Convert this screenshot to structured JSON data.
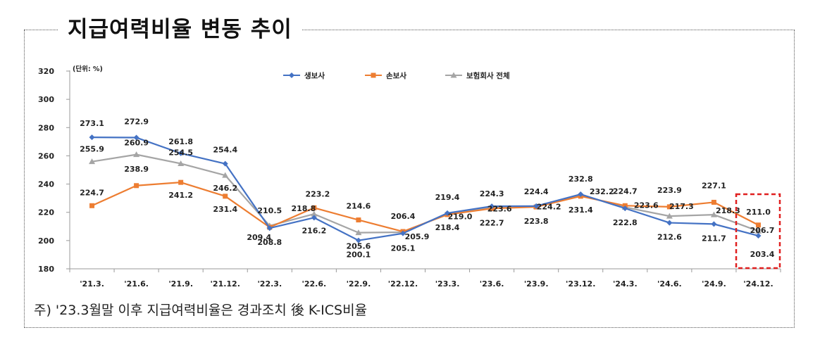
{
  "title": "지급여력비율 변동 추이",
  "note": "주) '23.3월말 이후 지급여력비율은 경과조치 後 K-ICS비율",
  "colors": {
    "life": "#4472C4",
    "nonlife": "#ED7D31",
    "total": "#A5A5A5",
    "highlight": "#E02020"
  },
  "chart_data": {
    "type": "line",
    "unit_label": "(단위: %)",
    "categories": [
      "'21.3.",
      "'21.6.",
      "'21.9.",
      "'21.12.",
      "'22.3.",
      "'22.6.",
      "'22.9.",
      "'22.12.",
      "'23.3.",
      "'23.6.",
      "'23.9.",
      "'23.12.",
      "'24.3.",
      "'24.6.",
      "'24.9.",
      "'24.12."
    ],
    "ylim": [
      180,
      320
    ],
    "yticks": [
      180,
      200,
      220,
      240,
      260,
      280,
      300,
      320
    ],
    "legend_position": "top-center",
    "grid": false,
    "series": [
      {
        "name": "생보사",
        "color": "#4472C4",
        "marker": "diamond",
        "values": [
          273.1,
          272.9,
          261.8,
          254.4,
          208.8,
          216.2,
          200.1,
          205.1,
          219.4,
          224.3,
          224.4,
          232.8,
          222.8,
          212.6,
          211.7,
          203.4
        ]
      },
      {
        "name": "손보사",
        "color": "#ED7D31",
        "marker": "square",
        "values": [
          224.7,
          238.9,
          241.2,
          231.4,
          209.4,
          223.2,
          214.6,
          206.4,
          218.4,
          222.7,
          223.8,
          231.4,
          224.7,
          223.9,
          227.1,
          211.0
        ]
      },
      {
        "name": "보험회사 전체",
        "color": "#A5A5A5",
        "marker": "triangle",
        "values": [
          255.9,
          260.9,
          254.5,
          246.2,
          210.5,
          218.8,
          205.6,
          205.9,
          219.0,
          223.6,
          224.2,
          232.2,
          223.6,
          217.3,
          218.3,
          206.7
        ]
      }
    ],
    "data_labels": [
      {
        "text": "273.1"
      },
      {
        "text": "272.9"
      },
      {
        "text": "261.8"
      },
      {
        "text": "254.4"
      },
      {
        "text": "255.9"
      },
      {
        "text": "260.9"
      },
      {
        "text": "254.5"
      },
      {
        "text": "246.2"
      },
      {
        "text": "224.7"
      },
      {
        "text": "238.9"
      },
      {
        "text": "241.2"
      },
      {
        "text": "231.4"
      },
      {
        "text": "210.5"
      },
      {
        "text": "209.4"
      },
      {
        "text": "208.8"
      },
      {
        "text": "218.8"
      },
      {
        "text": "223.2"
      },
      {
        "text": "216.2"
      },
      {
        "text": "214.6"
      },
      {
        "text": "205.6"
      },
      {
        "text": "200.1"
      },
      {
        "text": "206.4"
      },
      {
        "text": "205.9"
      },
      {
        "text": "205.1"
      },
      {
        "text": "219.4"
      },
      {
        "text": "219.0"
      },
      {
        "text": "218.4"
      },
      {
        "text": "224.3"
      },
      {
        "text": "223.6"
      },
      {
        "text": "222.7"
      },
      {
        "text": "224.4"
      },
      {
        "text": "224.2"
      },
      {
        "text": "223.8"
      },
      {
        "text": "232.8"
      },
      {
        "text": "232.2"
      },
      {
        "text": "231.4"
      },
      {
        "text": "224.7"
      },
      {
        "text": "223.6"
      },
      {
        "text": "222.8"
      },
      {
        "text": "223.9"
      },
      {
        "text": "217.3"
      },
      {
        "text": "212.6"
      },
      {
        "text": "227.1"
      },
      {
        "text": "218.3"
      },
      {
        "text": "211.7"
      },
      {
        "text": "211.0"
      },
      {
        "text": "206.7"
      },
      {
        "text": "203.4"
      }
    ]
  }
}
